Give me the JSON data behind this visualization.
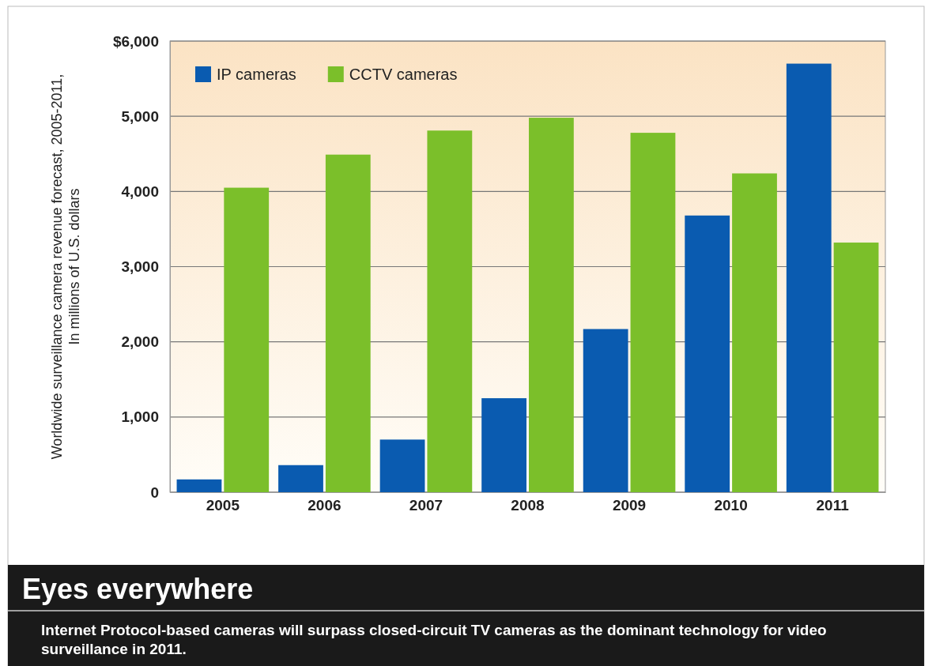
{
  "chart_data": {
    "type": "bar",
    "title": "Eyes everywhere",
    "subtitle": "Internet Protocol-based cameras will surpass closed-circuit TV cameras as the dominant technology for video surveillance in 2011.",
    "ylabel": "Worldwide surveillance camera revenue forecast, 2005-2011,\nIn millions of U.S. dollars",
    "categories": [
      "2005",
      "2006",
      "2007",
      "2008",
      "2009",
      "2010",
      "2011"
    ],
    "series": [
      {
        "name": "IP cameras",
        "color": "#0a5bb0",
        "values": [
          170,
          360,
          700,
          1250,
          2170,
          3680,
          5700
        ]
      },
      {
        "name": "CCTV cameras",
        "color": "#7bbf2a",
        "values": [
          4050,
          4490,
          4810,
          4980,
          4780,
          4240,
          3320
        ]
      }
    ],
    "ylim": [
      0,
      6000
    ],
    "yticks": [
      0,
      {
        "value": 1000,
        "label": "1,000"
      },
      {
        "value": 2000,
        "label": "2,000"
      },
      {
        "value": 3000,
        "label": "3,000"
      },
      {
        "value": 4000,
        "label": "4,000"
      },
      {
        "value": 5000,
        "label": "5,000"
      },
      {
        "value": 6000,
        "label": "$6,000"
      }
    ],
    "grid": "y",
    "legend": "top left"
  }
}
